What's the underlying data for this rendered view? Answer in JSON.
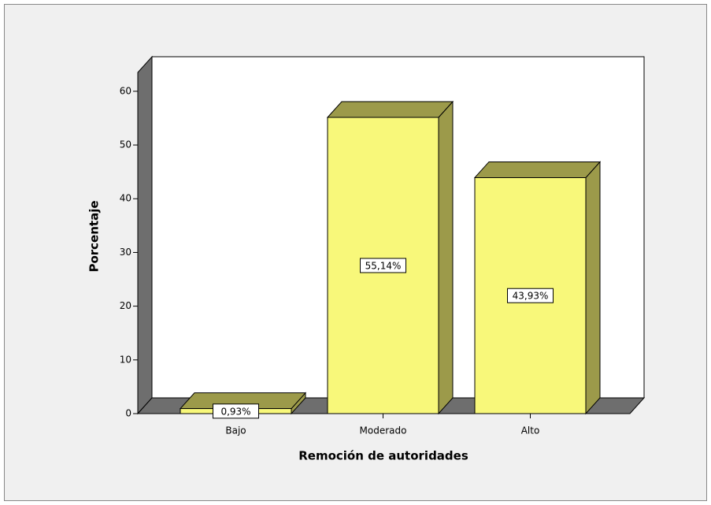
{
  "chart_data": {
    "type": "bar3d",
    "xlabel": "Remoción de autoridades",
    "ylabel": "Porcentaje",
    "categories": [
      "Bajo",
      "Moderado",
      "Alto"
    ],
    "values": [
      0.93,
      55.14,
      43.93
    ],
    "value_labels": [
      "0,93%",
      "55,14%",
      "43,93%"
    ],
    "color": "#f8f87a",
    "ylim": [
      0,
      63.5
    ],
    "yticks": [
      0,
      10,
      20,
      30,
      40,
      50,
      60
    ]
  }
}
